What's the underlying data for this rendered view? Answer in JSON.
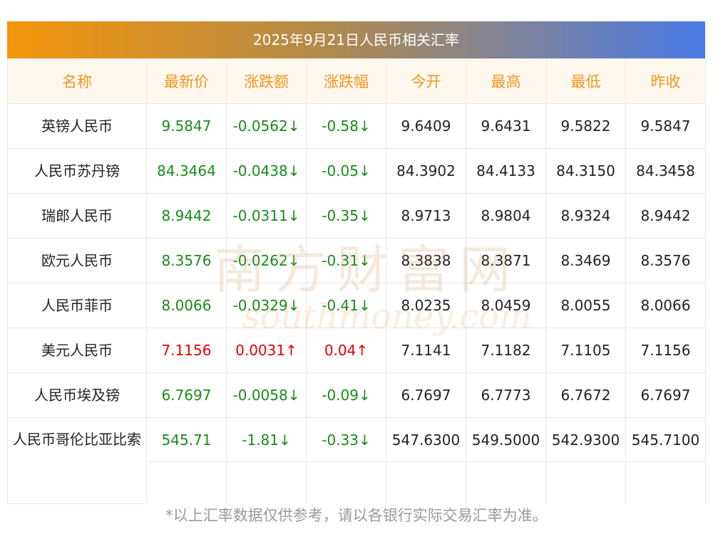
{
  "title": "2025年9月21日人民币相关汇率",
  "columns": [
    "名称",
    "最新价",
    "涨跌额",
    "涨跌幅",
    "今开",
    "最高",
    "最低",
    "昨收"
  ],
  "rows": [
    {
      "name": "英镑人民币",
      "latest": "9.5847",
      "change": "-0.0562↓",
      "pct": "-0.58↓",
      "open": "9.6409",
      "high": "9.6431",
      "low": "9.5822",
      "prev": "9.5847",
      "dir": "down"
    },
    {
      "name": "人民币苏丹镑",
      "latest": "84.3464",
      "change": "-0.0438↓",
      "pct": "-0.05↓",
      "open": "84.3902",
      "high": "84.4133",
      "low": "84.3150",
      "prev": "84.3458",
      "dir": "down"
    },
    {
      "name": "瑞郎人民币",
      "latest": "8.9442",
      "change": "-0.0311↓",
      "pct": "-0.35↓",
      "open": "8.9713",
      "high": "8.9804",
      "low": "8.9324",
      "prev": "8.9442",
      "dir": "down"
    },
    {
      "name": "欧元人民币",
      "latest": "8.3576",
      "change": "-0.0262↓",
      "pct": "-0.31↓",
      "open": "8.3838",
      "high": "8.3871",
      "low": "8.3469",
      "prev": "8.3576",
      "dir": "down"
    },
    {
      "name": "人民币菲币",
      "latest": "8.0066",
      "change": "-0.0329↓",
      "pct": "-0.41↓",
      "open": "8.0235",
      "high": "8.0459",
      "low": "8.0055",
      "prev": "8.0066",
      "dir": "down"
    },
    {
      "name": "美元人民币",
      "latest": "7.1156",
      "change": "0.0031↑",
      "pct": "0.04↑",
      "open": "7.1141",
      "high": "7.1182",
      "low": "7.1105",
      "prev": "7.1156",
      "dir": "up"
    },
    {
      "name": "人民币埃及镑",
      "latest": "6.7697",
      "change": "-0.0058↓",
      "pct": "-0.09↓",
      "open": "6.7697",
      "high": "6.7773",
      "low": "6.7672",
      "prev": "6.7697",
      "dir": "down"
    },
    {
      "name": "人民币哥伦比亚比索",
      "latest": "545.71",
      "change": "-1.81↓",
      "pct": "-0.33↓",
      "open": "547.6300",
      "high": "549.5000",
      "low": "542.9300",
      "prev": "545.7100",
      "dir": "down"
    }
  ],
  "footnote": "*以上汇率数据仅供参考，请以各银行实际交易汇率为准。",
  "watermark": {
    "cn": "南方财富网",
    "en": "southmoney.com"
  },
  "colors": {
    "up": "#e60000",
    "down": "#1a8a1a",
    "header_text": "#f0961e",
    "header_bg": "#fff8ee",
    "gradient_start": "#f5960a",
    "gradient_end": "#4a7be8"
  }
}
